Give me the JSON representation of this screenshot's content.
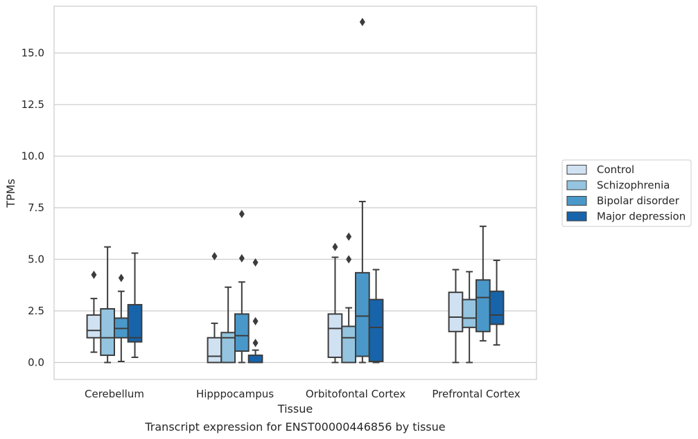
{
  "chart_data": {
    "type": "box",
    "xlabel": "Tissue",
    "ylabel": "TPMs",
    "caption": "Transcript expression for ENST00000446856 by tissue",
    "ylim": [
      -0.8,
      17.5
    ],
    "yticks": [
      "0.0",
      "2.5",
      "5.0",
      "7.5",
      "10.0",
      "12.5",
      "15.0"
    ],
    "ytick_values": [
      0,
      2.5,
      5,
      7.5,
      10,
      12.5,
      15
    ],
    "grid": "horizontal",
    "legend_position": "right",
    "categories": [
      "Cerebellum",
      "Hipppocampus",
      "Orbitofontal Cortex",
      "Prefrontal Cortex"
    ],
    "series": [
      {
        "name": "Control",
        "color": "#d0e1f2",
        "boxes": [
          {
            "whislo": 0.5,
            "q1": 1.2,
            "med": 1.55,
            "q3": 2.3,
            "whishi": 3.1,
            "fliers": [
              4.25
            ]
          },
          {
            "whislo": 0.0,
            "q1": 0.0,
            "med": 0.3,
            "q3": 1.2,
            "whishi": 1.9,
            "fliers": [
              5.15
            ]
          },
          {
            "whislo": 0.0,
            "q1": 0.25,
            "med": 1.65,
            "q3": 2.35,
            "whishi": 5.1,
            "fliers": [
              5.6
            ]
          },
          {
            "whislo": 0.0,
            "q1": 1.5,
            "med": 2.2,
            "q3": 3.4,
            "whishi": 4.5,
            "fliers": []
          }
        ]
      },
      {
        "name": "Schizophrenia",
        "color": "#94c4df",
        "boxes": [
          {
            "whislo": 0.0,
            "q1": 0.35,
            "med": 1.2,
            "q3": 2.6,
            "whishi": 5.6,
            "fliers": []
          },
          {
            "whislo": 0.0,
            "q1": 0.0,
            "med": 1.2,
            "q3": 1.45,
            "whishi": 3.65,
            "fliers": []
          },
          {
            "whislo": 0.0,
            "q1": 0.0,
            "med": 1.2,
            "q3": 1.75,
            "whishi": 2.65,
            "fliers": [
              5.0,
              6.1
            ]
          },
          {
            "whislo": 0.0,
            "q1": 1.7,
            "med": 2.15,
            "q3": 3.05,
            "whishi": 4.4,
            "fliers": []
          }
        ]
      },
      {
        "name": "Bipolar disorder",
        "color": "#4a98c9",
        "boxes": [
          {
            "whislo": 0.05,
            "q1": 1.2,
            "med": 1.65,
            "q3": 2.15,
            "whishi": 3.45,
            "fliers": [
              4.1
            ]
          },
          {
            "whislo": 0.0,
            "q1": 0.55,
            "med": 1.3,
            "q3": 2.35,
            "whishi": 3.9,
            "fliers": [
              5.05,
              7.2
            ]
          },
          {
            "whislo": 0.0,
            "q1": 0.3,
            "med": 2.25,
            "q3": 4.35,
            "whishi": 7.8,
            "fliers": [
              16.5
            ]
          },
          {
            "whislo": 1.05,
            "q1": 1.5,
            "med": 3.15,
            "q3": 4.0,
            "whishi": 6.6,
            "fliers": []
          }
        ]
      },
      {
        "name": "Major depression",
        "color": "#1764ab",
        "boxes": [
          {
            "whislo": 0.25,
            "q1": 1.0,
            "med": 1.2,
            "q3": 2.8,
            "whishi": 5.3,
            "fliers": []
          },
          {
            "whislo": 0.0,
            "q1": 0.0,
            "med": 0.0,
            "q3": 0.35,
            "whishi": 0.6,
            "fliers": [
              0.95,
              2.0,
              4.85
            ]
          },
          {
            "whislo": 0.0,
            "q1": 0.05,
            "med": 1.7,
            "q3": 3.05,
            "whishi": 4.5,
            "fliers": []
          },
          {
            "whislo": 0.85,
            "q1": 1.85,
            "med": 2.3,
            "q3": 3.45,
            "whishi": 4.95,
            "fliers": []
          }
        ]
      }
    ]
  }
}
